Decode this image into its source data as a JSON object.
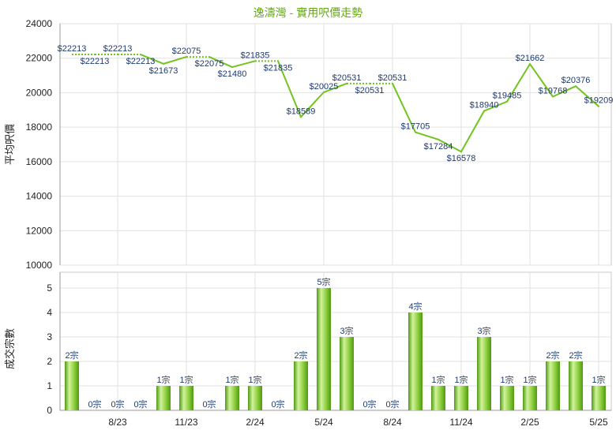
{
  "colors": {
    "title": "#66a810",
    "line": "#72c41e",
    "bar_light": "#d2f39c",
    "bar_mid": "#8ccd3c",
    "bar_dark": "#4e9a12",
    "data_label": "#1f3a70",
    "grid": "#e2e2e2",
    "frame": "#c8c8c8",
    "axis": "#999999"
  },
  "chart_data": [
    {
      "type": "line",
      "title": "逸濤灣 - 實用呎價走勢",
      "ylabel": "平均呎價",
      "ylim": [
        10000,
        24000
      ],
      "yticks": [
        10000,
        12000,
        14000,
        16000,
        18000,
        20000,
        22000,
        24000
      ],
      "grid": true,
      "x": [
        "6/23",
        "7/23",
        "8/23",
        "9/23",
        "10/23",
        "11/23",
        "12/23",
        "1/24",
        "2/24",
        "3/24",
        "4/24",
        "5/24",
        "6/24",
        "7/24",
        "8/24",
        "9/24",
        "10/24",
        "11/24",
        "12/24",
        "1/25",
        "2/25",
        "3/25",
        "4/25",
        "5/25"
      ],
      "values": [
        22213,
        22213,
        22213,
        22213,
        21673,
        22075,
        22075,
        21480,
        21835,
        21835,
        18589,
        20025,
        20531,
        20531,
        20531,
        17705,
        17284,
        16578,
        18940,
        19485,
        21662,
        19768,
        20376,
        19209
      ],
      "data_labels": [
        "$22213",
        "$22213",
        "$22213",
        "$22213",
        "$21673",
        "$22075",
        "$22075",
        "$21480",
        "$21835",
        "$21835",
        "$18589",
        "$20025",
        "$20531",
        "$20531",
        "$20531",
        "$17705",
        "$17284",
        "$16578",
        "$18940",
        "$19485",
        "$21662",
        "$19768",
        "$20376",
        "$19209"
      ]
    },
    {
      "type": "bar",
      "ylabel": "成交宗數",
      "ylim": [
        0,
        5
      ],
      "yticks": [
        0,
        1,
        2,
        3,
        4,
        5
      ],
      "grid": true,
      "x": [
        "6/23",
        "7/23",
        "8/23",
        "9/23",
        "10/23",
        "11/23",
        "12/23",
        "1/24",
        "2/24",
        "3/24",
        "4/24",
        "5/24",
        "6/24",
        "7/24",
        "8/24",
        "9/24",
        "10/24",
        "11/24",
        "12/24",
        "1/25",
        "2/25",
        "3/25",
        "4/25",
        "5/25"
      ],
      "xticks": [
        "8/23",
        "11/23",
        "2/24",
        "5/24",
        "8/24",
        "11/24",
        "2/25",
        "5/25"
      ],
      "values": [
        2,
        0,
        0,
        0,
        1,
        1,
        0,
        1,
        1,
        0,
        2,
        5,
        3,
        0,
        0,
        4,
        1,
        1,
        3,
        1,
        1,
        2,
        2,
        1
      ],
      "data_labels": [
        "2宗",
        "0宗",
        "0宗",
        "0宗",
        "1宗",
        "1宗",
        "0宗",
        "1宗",
        "1宗",
        "0宗",
        "2宗",
        "5宗",
        "3宗",
        "0宗",
        "0宗",
        "4宗",
        "1宗",
        "1宗",
        "3宗",
        "1宗",
        "1宗",
        "2宗",
        "2宗",
        "1宗"
      ]
    }
  ]
}
